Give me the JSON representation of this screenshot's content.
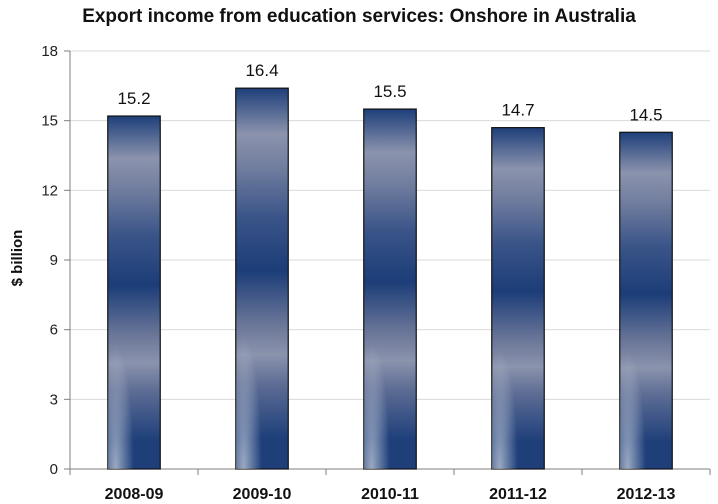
{
  "chart_data": {
    "type": "bar",
    "title": "Export income from education services: Onshore in Australia",
    "ylabel": "$ billion",
    "xlabel": "",
    "categories": [
      "2008-09",
      "2009-10",
      "2010-11",
      "2011-12",
      "2012-13"
    ],
    "values": [
      15.2,
      16.4,
      15.5,
      14.7,
      14.5
    ],
    "value_labels": [
      "15.2",
      "16.4",
      "15.5",
      "14.7",
      "14.5"
    ],
    "yticks": [
      0,
      3,
      6,
      9,
      12,
      15,
      18
    ],
    "ylim": [
      0,
      18
    ],
    "grid": true,
    "legend": "none",
    "colors": {
      "bar_dark": "#1e3f7a",
      "bar_light": "#8b93ad",
      "bar_outline": "#111111",
      "grid": "#d9d9d9",
      "axis": "#7f7f7f"
    }
  }
}
